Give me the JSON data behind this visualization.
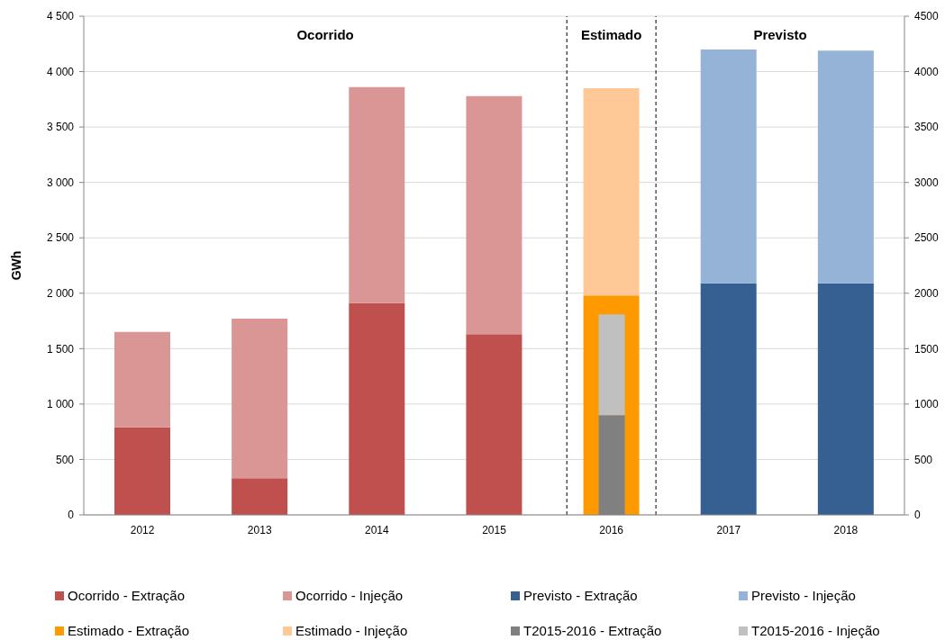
{
  "chart_data": {
    "type": "bar",
    "stacked": true,
    "ylabel": "GWh",
    "x": [
      2012,
      2013,
      2014,
      2015,
      2016,
      2017,
      2018
    ],
    "xlim": [
      2011.5,
      2018.5
    ],
    "xticks": [
      2012,
      2013,
      2014,
      2015,
      2016,
      2017,
      2018
    ],
    "ylim": [
      0,
      4500
    ],
    "yticks": [
      0,
      500,
      {
        "value": 1000,
        "label": "1 000"
      },
      {
        "value": 1500,
        "label": "1 500"
      },
      {
        "value": 2000,
        "label": "2 000"
      },
      {
        "value": 2500,
        "label": "2 500"
      },
      {
        "value": 3000,
        "label": "3 000"
      },
      {
        "value": 3500,
        "label": "3 500"
      },
      {
        "value": 4000,
        "label": "4 000"
      },
      {
        "value": 4500,
        "label": "4 500"
      }
    ],
    "y2lim": [
      0,
      4500
    ],
    "y2ticks": [
      0,
      500,
      1000,
      1500,
      2000,
      2500,
      3000,
      3500,
      4000,
      4500
    ],
    "grid": "y",
    "legend": "bottom",
    "series": [
      {
        "name": "Ocorrido - Extração",
        "color": "#c0504d",
        "values": [
          790,
          330,
          1910,
          1630,
          null,
          null,
          null
        ]
      },
      {
        "name": "Ocorrido - Injeção",
        "color": "#d99694",
        "values": [
          860,
          1440,
          1950,
          2150,
          null,
          null,
          null
        ]
      },
      {
        "name": "Previsto - Extração",
        "color": "#376092",
        "values": [
          null,
          null,
          null,
          null,
          null,
          2090,
          2090
        ]
      },
      {
        "name": "Previsto - Injeção",
        "color": "#95b3d7",
        "values": [
          null,
          null,
          null,
          null,
          null,
          2110,
          2100
        ]
      },
      {
        "name": "Estimado - Extração",
        "color": "#ff9900",
        "values": [
          null,
          null,
          null,
          null,
          1980,
          null,
          null
        ]
      },
      {
        "name": "Estimado - Injeção",
        "color": "#ffc896",
        "values": [
          null,
          null,
          null,
          null,
          1870,
          null,
          null
        ]
      },
      {
        "name": "T2015-2016 - Extração",
        "color": "#808080",
        "axis": "y2",
        "values": [
          null,
          null,
          null,
          null,
          900,
          null,
          null
        ]
      },
      {
        "name": "T2015-2016 - Injeção",
        "color": "#c0c0c0",
        "axis": "y2",
        "values": [
          null,
          null,
          null,
          null,
          910,
          null,
          null
        ]
      }
    ],
    "ref_lines": [
      {
        "axis": "x",
        "value": 2015.62,
        "color": "#000000",
        "line_style": "dashed"
      },
      {
        "axis": "x",
        "value": 2016.38,
        "color": "#000000",
        "line_style": "dashed"
      }
    ],
    "annotations": [
      "Ocorrido",
      "Estimado",
      "Previsto"
    ]
  }
}
